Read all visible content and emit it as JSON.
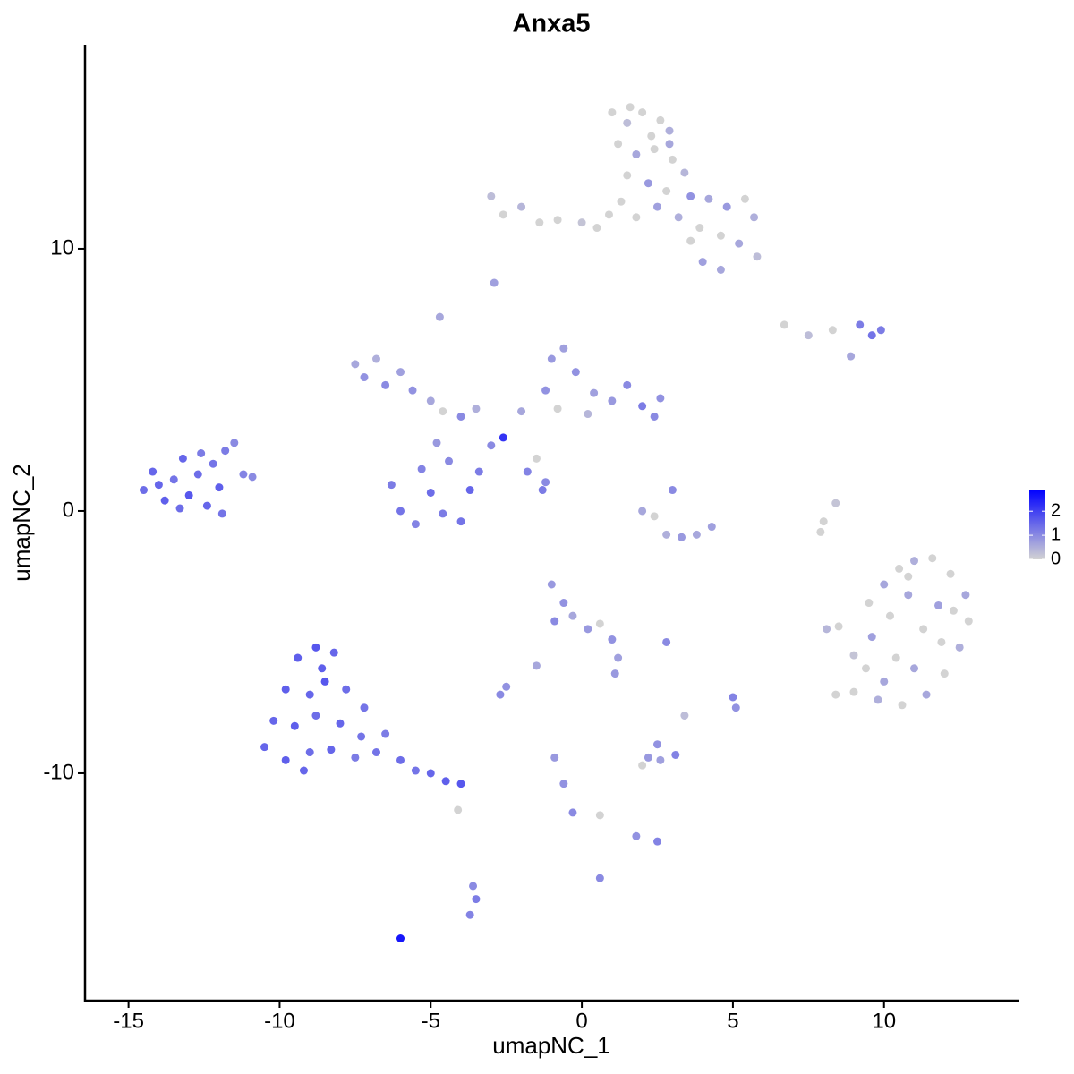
{
  "chart_data": {
    "type": "scatter",
    "title": "Anxa5",
    "xlabel": "umapNC_1",
    "ylabel": "umapNC_2",
    "x": [
      -14.5,
      -14.2,
      -13.8,
      -13.5,
      -13.2,
      -13.0,
      -12.7,
      -12.4,
      -12.2,
      -12.0,
      -11.8,
      -11.5,
      -11.2,
      -14.0,
      -13.3,
      -12.6,
      -11.9,
      -10.9,
      -9.4,
      -8.8,
      -8.2,
      -9.8,
      -9.0,
      -8.5,
      -7.8,
      -10.2,
      -9.5,
      -8.8,
      -8.0,
      -7.3,
      -10.5,
      -9.8,
      -9.0,
      -8.3,
      -7.5,
      -6.8,
      -6.0,
      -5.5,
      -5.0,
      -4.5,
      -4.0,
      -6.5,
      -7.2,
      -9.2,
      -8.6,
      -4.1,
      1.0,
      1.5,
      2.0,
      2.6,
      2.9,
      1.2,
      1.8,
      2.4,
      3.0,
      3.4,
      1.5,
      2.2,
      2.8,
      3.6,
      4.2,
      4.8,
      5.4,
      5.7,
      1.3,
      0.9,
      1.8,
      2.5,
      3.2,
      3.9,
      4.6,
      5.2,
      5.8,
      4.0,
      4.6,
      3.6,
      -3.0,
      -2.6,
      -2.0,
      -1.4,
      -0.8,
      0.0,
      0.5,
      2.9,
      2.3,
      1.6,
      8.5,
      9.0,
      9.5,
      10.0,
      10.5,
      11.0,
      11.6,
      12.2,
      12.7,
      12.8,
      12.5,
      12.0,
      11.4,
      10.6,
      9.8,
      9.0,
      8.4,
      9.6,
      10.2,
      10.8,
      11.3,
      11.8,
      10.4,
      11.0,
      11.9,
      9.4,
      10.0,
      12.3,
      10.8,
      8.1,
      -7.5,
      -7.2,
      -6.8,
      -6.5,
      -6.0,
      -5.6,
      -5.0,
      -4.6,
      -4.0,
      -3.5,
      -6.3,
      -6.0,
      -5.5,
      -5.0,
      -4.6,
      -4.0,
      -3.7,
      -3.4,
      -4.4,
      -5.3,
      -3.0,
      -2.6,
      -4.8,
      -2.0,
      -1.2,
      -1.0,
      -0.6,
      -0.2,
      0.4,
      1.0,
      1.5,
      2.0,
      2.4,
      2.6,
      -0.8,
      0.2,
      -1.5,
      -1.8,
      -1.3,
      -4.7,
      -2.9,
      -1.2,
      -1.0,
      -0.6,
      -0.9,
      -0.3,
      0.2,
      0.6,
      1.0,
      1.2,
      1.1,
      -2.5,
      -2.7,
      -1.5,
      2.0,
      2.8,
      3.3,
      3.8,
      4.3,
      3.0,
      2.4,
      6.7,
      7.5,
      8.3,
      9.2,
      9.6,
      9.9,
      8.9,
      8.4,
      8.0,
      7.9,
      2.2,
      2.6,
      2.0,
      2.5,
      3.1,
      2.8,
      5.0,
      5.1,
      3.4,
      -0.9,
      -0.6,
      -0.3,
      0.6,
      1.8,
      2.5,
      -3.6,
      -3.5,
      -3.7,
      0.6,
      -6.0
    ],
    "values": [
      0.8,
      1.5,
      0.4,
      1.2,
      2.0,
      0.6,
      1.4,
      0.2,
      1.8,
      0.9,
      2.3,
      2.6,
      1.4,
      1.0,
      0.1,
      2.2,
      -0.1,
      1.3,
      -5.6,
      -5.2,
      -5.4,
      -6.8,
      -7.0,
      -6.5,
      -6.8,
      -8.0,
      -8.2,
      -7.8,
      -8.1,
      -8.6,
      -9.0,
      -9.5,
      -9.2,
      -9.1,
      -9.4,
      -9.2,
      -9.5,
      -9.9,
      -10.0,
      -10.3,
      -10.4,
      -8.5,
      -7.5,
      -9.9,
      -6.0,
      -11.4,
      15.2,
      14.8,
      15.2,
      14.9,
      14.5,
      14.0,
      13.6,
      13.8,
      13.4,
      12.9,
      12.8,
      12.5,
      12.2,
      12.0,
      11.9,
      11.6,
      11.9,
      11.2,
      11.8,
      11.3,
      11.2,
      11.6,
      11.2,
      10.8,
      10.5,
      10.2,
      9.7,
      9.5,
      9.2,
      10.3,
      12.0,
      11.3,
      11.6,
      11.0,
      11.1,
      11.0,
      10.8,
      14.0,
      14.3,
      15.4,
      -4.4,
      -5.5,
      -3.5,
      -2.8,
      -2.2,
      -1.9,
      -1.8,
      -2.4,
      -3.2,
      -4.2,
      -5.2,
      -6.2,
      -7.0,
      -7.4,
      -7.2,
      -6.9,
      -7.0,
      -4.8,
      -4.0,
      -3.2,
      -4.5,
      -3.6,
      -5.6,
      -6.0,
      -5.0,
      -6.0,
      -6.5,
      -3.8,
      -2.5,
      -4.5,
      5.6,
      5.1,
      5.8,
      4.8,
      5.3,
      4.6,
      4.2,
      3.8,
      3.6,
      3.9,
      1.0,
      0.0,
      -0.5,
      0.7,
      -0.1,
      -0.4,
      0.8,
      1.5,
      1.9,
      1.6,
      2.5,
      2.8,
      2.6,
      3.8,
      4.6,
      5.8,
      6.2,
      5.3,
      4.5,
      4.2,
      4.8,
      4.0,
      3.6,
      4.3,
      3.9,
      3.7,
      2.0,
      1.5,
      0.8,
      7.4,
      8.7,
      1.1,
      -2.8,
      -3.5,
      -4.2,
      -4.0,
      -4.5,
      -4.3,
      -4.9,
      -5.6,
      -6.2,
      -6.7,
      -7.0,
      -5.9,
      0.0,
      -0.9,
      -1.0,
      -0.9,
      -0.6,
      0.8,
      -0.2,
      7.1,
      6.7,
      6.9,
      7.1,
      6.7,
      6.9,
      5.9,
      0.3,
      -0.4,
      -0.8,
      -9.4,
      -9.5,
      -9.7,
      -8.9,
      -9.3,
      -5.0,
      -7.1,
      -7.5,
      -7.8,
      -9.4,
      -10.4,
      -11.5,
      -11.6,
      -12.4,
      -12.6,
      -14.3,
      -14.8,
      -15.4,
      -14.0,
      -16.3
    ],
    "expression": [
      1.4,
      1.5,
      1.6,
      1.3,
      1.5,
      1.7,
      1.4,
      1.5,
      1.3,
      1.6,
      1.2,
      1.0,
      1.1,
      1.5,
      1.4,
      1.2,
      1.3,
      1.0,
      1.6,
      1.7,
      1.5,
      1.6,
      1.5,
      1.7,
      1.4,
      1.5,
      1.6,
      1.4,
      1.5,
      1.3,
      1.5,
      1.6,
      1.4,
      1.5,
      1.2,
      1.3,
      1.4,
      1.3,
      1.5,
      1.6,
      1.7,
      1.2,
      1.3,
      1.5,
      1.6,
      0.0,
      0.0,
      0.3,
      0.0,
      0.0,
      0.5,
      0.0,
      0.6,
      0.0,
      0.0,
      0.4,
      0.0,
      0.8,
      0.0,
      0.9,
      0.6,
      0.8,
      0.0,
      0.5,
      0.0,
      0.0,
      0.0,
      0.7,
      0.5,
      0.0,
      0.0,
      0.6,
      0.3,
      0.7,
      0.6,
      0.0,
      0.3,
      0.0,
      0.4,
      0.0,
      0.0,
      0.2,
      0.0,
      0.6,
      0.0,
      0.0,
      0.0,
      0.2,
      0.0,
      0.6,
      0.0,
      0.5,
      0.0,
      0.0,
      0.6,
      0.0,
      0.5,
      0.0,
      0.6,
      0.0,
      0.5,
      0.0,
      0.0,
      0.7,
      0.0,
      0.6,
      0.0,
      0.7,
      0.0,
      0.6,
      0.0,
      0.0,
      0.6,
      0.0,
      0.0,
      0.4,
      0.6,
      0.9,
      0.5,
      1.0,
      0.7,
      0.9,
      0.6,
      0.0,
      1.0,
      0.5,
      1.2,
      1.3,
      1.1,
      1.4,
      1.2,
      1.3,
      1.5,
      1.2,
      1.0,
      1.1,
      1.0,
      2.2,
      0.8,
      0.6,
      0.9,
      0.8,
      0.7,
      0.9,
      0.7,
      0.8,
      1.0,
      1.2,
      1.0,
      0.9,
      0.0,
      0.4,
      0.0,
      1.1,
      1.2,
      0.6,
      0.7,
      1.0,
      0.8,
      0.9,
      1.0,
      0.6,
      0.8,
      0.0,
      0.9,
      0.7,
      0.8,
      0.9,
      1.0,
      0.6,
      0.6,
      0.5,
      0.8,
      0.6,
      0.7,
      1.0,
      0.0,
      0.0,
      0.3,
      0.0,
      1.2,
      1.3,
      1.2,
      0.6,
      0.2,
      0.0,
      0.0,
      0.8,
      0.7,
      0.0,
      0.9,
      1.1,
      1.0,
      1.1,
      0.9,
      0.3,
      0.8,
      0.9,
      1.0,
      0.0,
      0.9,
      1.1,
      1.0,
      1.2,
      1.1,
      1.0,
      2.6
    ],
    "xlim": [
      -16.44,
      14.45
    ],
    "ylim": [
      -18.67,
      17.78
    ],
    "xticks": [
      -15,
      -10,
      -5,
      0,
      5,
      10
    ],
    "yticks": [
      -10,
      0,
      10
    ],
    "color_scale": {
      "low": "#d3d3d3",
      "high": "#0000ff",
      "lim": [
        0,
        2.9
      ],
      "ticks": [
        0,
        1,
        2
      ]
    }
  }
}
